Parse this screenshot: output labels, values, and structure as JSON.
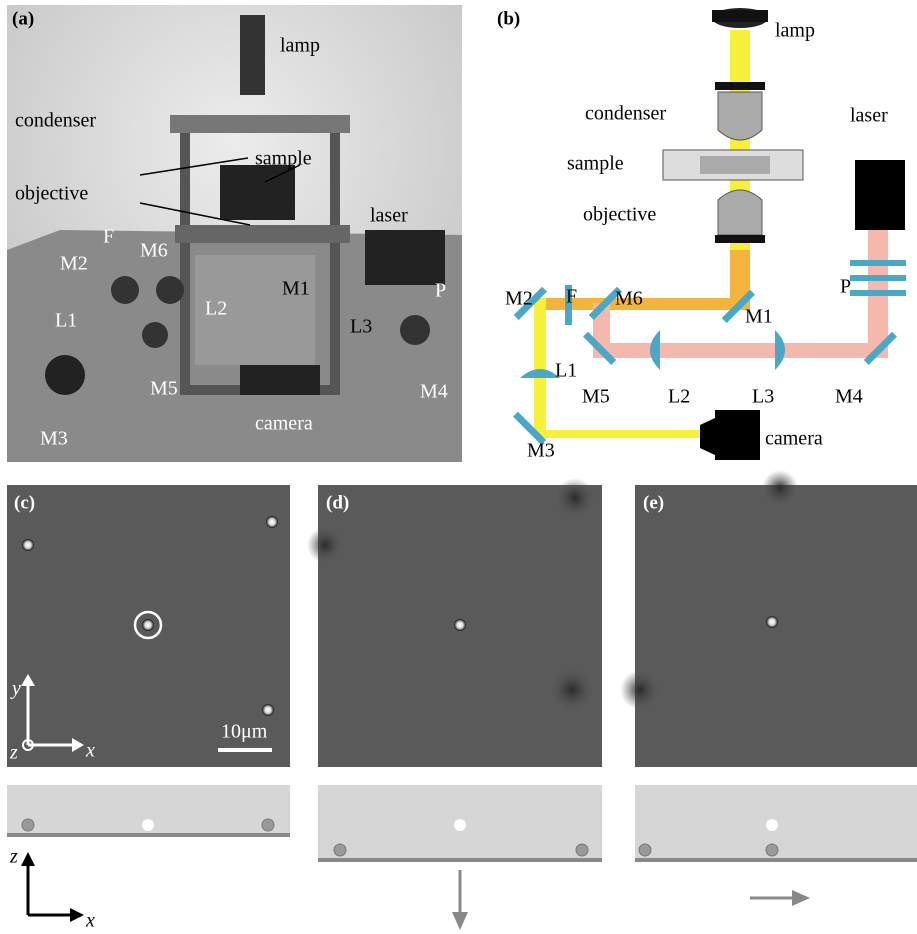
{
  "panels": {
    "a": {
      "label": "(a)",
      "annotations": [
        "lamp",
        "condenser",
        "sample",
        "objective",
        "laser",
        "F",
        "M2",
        "M6",
        "M1",
        "L1",
        "L2",
        "L3",
        "P",
        "M5",
        "M4",
        "M3",
        "camera"
      ]
    },
    "b": {
      "label": "(b)",
      "annotations": [
        "lamp",
        "condenser",
        "laser",
        "sample",
        "objective",
        "M2",
        "F",
        "M6",
        "P",
        "M1",
        "L1",
        "M5",
        "L2",
        "L3",
        "M4",
        "M3",
        "camera"
      ]
    },
    "c": {
      "label": "(c)",
      "scale_bar": "10μm",
      "axes": [
        "y",
        "z",
        "x"
      ]
    },
    "d": {
      "label": "(d)"
    },
    "e": {
      "label": "(e)"
    },
    "side_axes": [
      "z",
      "x"
    ]
  }
}
